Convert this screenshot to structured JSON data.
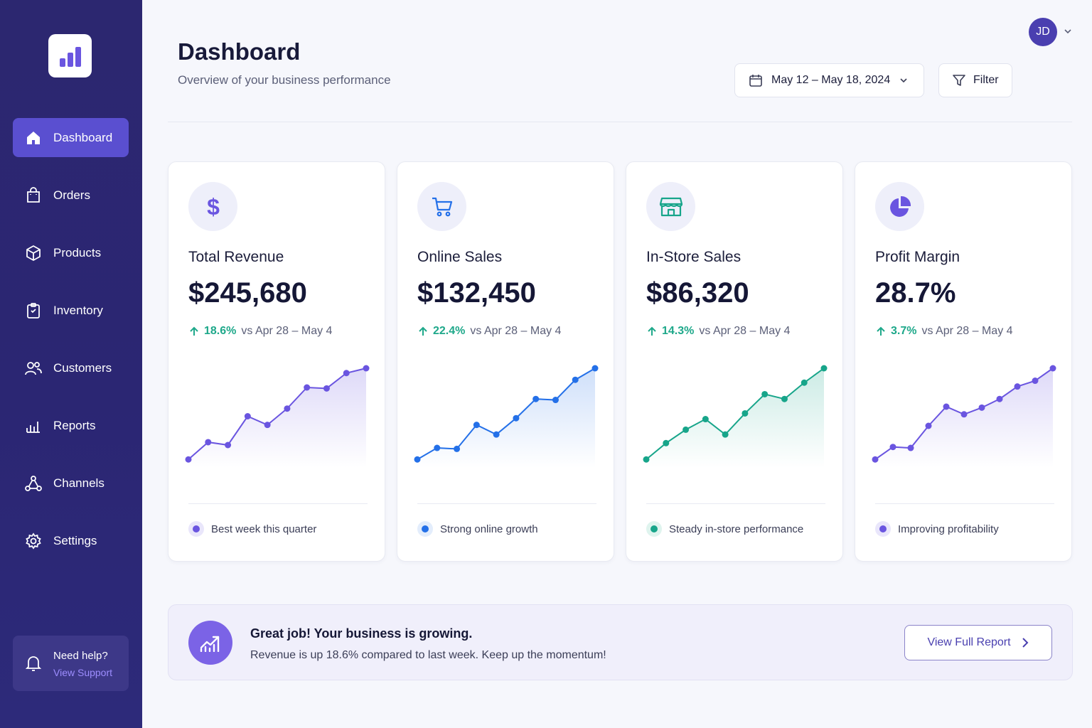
{
  "sidebar": {
    "logo_icon": "bar-chart-icon",
    "items": [
      {
        "label": "Dashboard",
        "icon": "home-icon",
        "active": true
      },
      {
        "label": "Orders",
        "icon": "shopping-bag-icon"
      },
      {
        "label": "Products",
        "icon": "box-icon"
      },
      {
        "label": "Inventory",
        "icon": "clipboard-icon"
      },
      {
        "label": "Customers",
        "icon": "users-icon"
      },
      {
        "label": "Reports",
        "icon": "reports-icon"
      },
      {
        "label": "Channels",
        "icon": "network-icon"
      },
      {
        "label": "Settings",
        "icon": "gear-icon"
      }
    ],
    "help": {
      "title": "Need help?",
      "link": "View Support"
    }
  },
  "header": {
    "title": "Dashboard",
    "subtitle": "Overview of your business performance",
    "date_range": "May 12 – May 18, 2024",
    "filter_label": "Filter",
    "avatar_initials": "JD"
  },
  "cards": [
    {
      "title": "Total Revenue",
      "value": "$245,680",
      "change": "18.6%",
      "compare": "vs Apr 28 – May 4",
      "note": "Best week this quarter",
      "icon": "dollar-icon",
      "color": "#6a55e0",
      "trend": [
        0.05,
        0.23,
        0.2,
        0.5,
        0.41,
        0.58,
        0.8,
        0.79,
        0.95,
        1.0
      ]
    },
    {
      "title": "Online Sales",
      "value": "$132,450",
      "change": "22.4%",
      "compare": "vs Apr 28 – May 4",
      "note": "Strong online growth",
      "icon": "cart-icon",
      "color": "#2470e8",
      "trend": [
        0.05,
        0.17,
        0.16,
        0.41,
        0.31,
        0.48,
        0.68,
        0.67,
        0.88,
        1.0
      ]
    },
    {
      "title": "In-Store Sales",
      "value": "$86,320",
      "change": "14.3%",
      "compare": "vs Apr 28 – May 4",
      "note": "Steady in-store performance",
      "icon": "store-icon",
      "color": "#17a58a",
      "trend": [
        0.05,
        0.22,
        0.36,
        0.47,
        0.31,
        0.53,
        0.73,
        0.68,
        0.85,
        1.0
      ]
    },
    {
      "title": "Profit Margin",
      "value": "28.7%",
      "change": "3.7%",
      "compare": "vs Apr 28 – May 4",
      "note": "Improving profitability",
      "icon": "pie-chart-icon",
      "color": "#6a55e0",
      "trend": [
        0.05,
        0.18,
        0.17,
        0.4,
        0.6,
        0.52,
        0.59,
        0.68,
        0.81,
        0.87,
        1.0
      ]
    }
  ],
  "banner": {
    "title": "Great job! Your business is growing.",
    "text": "Revenue is up 18.6% compared to last week. Keep up the momentum!",
    "button": "View Full Report",
    "icon": "trending-up-icon"
  }
}
